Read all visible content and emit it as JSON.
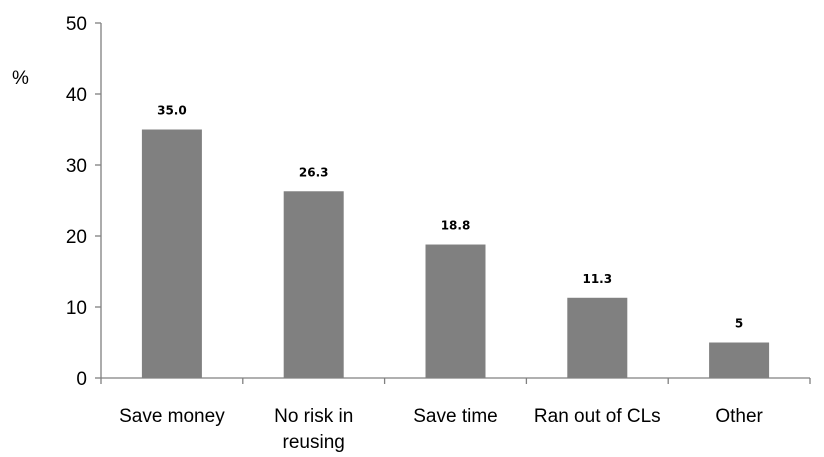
{
  "chart_data": {
    "type": "bar",
    "title": "",
    "xlabel": "",
    "ylabel": "%",
    "ylim": [
      0,
      50
    ],
    "yticks": [
      0,
      10,
      20,
      30,
      40,
      50
    ],
    "grid": false,
    "legend": "none",
    "categories": [
      [
        "Save money"
      ],
      [
        "No risk in",
        "reusing"
      ],
      [
        "Save time"
      ],
      [
        "Ran out of CLs"
      ],
      [
        "Other"
      ]
    ],
    "values": [
      35.0,
      26.3,
      18.8,
      11.3,
      5
    ],
    "data_labels": [
      "35.0",
      "26.3",
      "18.8",
      "11.3",
      "5"
    ],
    "bar_color": "#808080"
  }
}
